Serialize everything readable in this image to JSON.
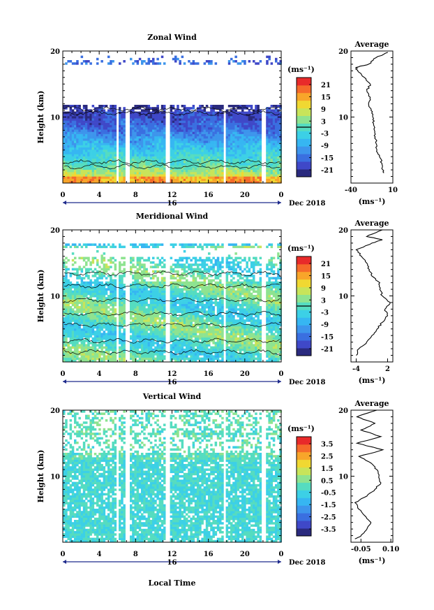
{
  "colors": {
    "colorbar": [
      "#2a2a7e",
      "#3f48c8",
      "#3a6fe0",
      "#3d95ec",
      "#36b6f2",
      "#3cd0e6",
      "#55dcc0",
      "#8ee390",
      "#c8e45a",
      "#f0d832",
      "#f8a52a",
      "#f56a2a",
      "#e82a2a"
    ],
    "axis": "#000000",
    "date_axis": "#1e2a8c"
  },
  "chart_data": [
    {
      "type": "heatmap",
      "title": "Zonal Wind",
      "ylabel": "Height (km)",
      "ylim": [
        0,
        20
      ],
      "y_ticks": [
        "20",
        "10"
      ],
      "x_ticks": [
        "0",
        "4",
        "8",
        "12",
        "16",
        "20",
        "0"
      ],
      "xlim": [
        0,
        24
      ],
      "date_axis": {
        "day": "16",
        "label": "Dec 2018"
      },
      "unit": "(ms⁻¹)",
      "colorbar_ticks": [
        "21",
        "15",
        "9",
        "3",
        "-3",
        "-9",
        "-15",
        "-21"
      ],
      "zero_contour": true,
      "data_gaps_hours": [
        5.8,
        7.0,
        11.3,
        17.6,
        21.8
      ],
      "data_ceiling_km": 19.5,
      "profile": {
        "title": "Average",
        "xlim": [
          -40,
          10
        ],
        "x_ticks": [
          "-40",
          "10"
        ],
        "xlabel": "(ms⁻¹)",
        "y_ticks": [
          "20",
          "10"
        ],
        "height_km": [
          1.5,
          2,
          3,
          4,
          5,
          6,
          7,
          8,
          9,
          10,
          11,
          12,
          13,
          14,
          15,
          16,
          17,
          17.5,
          18,
          19,
          19.8
        ],
        "value": [
          -1,
          -2,
          -3,
          -6,
          -9,
          -10,
          -11,
          -12,
          -13,
          -14,
          -16,
          -19,
          -17,
          -21,
          -17,
          -24,
          -32,
          -34,
          -19,
          -10,
          4
        ]
      }
    },
    {
      "type": "heatmap",
      "title": "Meridional Wind",
      "ylabel": "Height (km)",
      "ylim": [
        0,
        20
      ],
      "y_ticks": [
        "20",
        "10"
      ],
      "x_ticks": [
        "0",
        "4",
        "8",
        "12",
        "16",
        "20",
        "0"
      ],
      "xlim": [
        0,
        24
      ],
      "date_axis": {
        "day": "16",
        "label": "Dec 2018"
      },
      "unit": "(ms⁻¹)",
      "colorbar_ticks": [
        "21",
        "15",
        "9",
        "3",
        "-3",
        "-9",
        "-15",
        "-21"
      ],
      "zero_contour": true,
      "data_gaps_hours": [
        5.8,
        7.0,
        11.3,
        17.6,
        21.8
      ],
      "data_ceiling_km": 18.0,
      "profile": {
        "title": "Average",
        "xlim": [
          -5,
          3
        ],
        "x_ticks": [
          "-4",
          "2"
        ],
        "xlabel": "(ms⁻¹)",
        "y_ticks": [
          "20",
          "10"
        ],
        "height_km": [
          1,
          2,
          3,
          4,
          5,
          6,
          7,
          8,
          9,
          10,
          11,
          12,
          13,
          14,
          15,
          16,
          17,
          18,
          18.5,
          19,
          20
        ],
        "value": [
          -4,
          -3.5,
          -2,
          -1,
          0,
          1,
          2,
          1.5,
          2.5,
          1,
          0.5,
          0.5,
          -1,
          -1.5,
          -2,
          -3,
          -4,
          -1,
          1,
          -2,
          1
        ]
      }
    },
    {
      "type": "heatmap",
      "title": "Vertical Wind",
      "ylabel": "Height (km)",
      "ylim": [
        0,
        20
      ],
      "y_ticks": [
        "20",
        "10"
      ],
      "x_ticks": [
        "0",
        "4",
        "8",
        "12",
        "16",
        "20",
        "0"
      ],
      "xlim": [
        0,
        24
      ],
      "xlabel": "Local Time",
      "date_axis": {
        "day": "16",
        "label": "Dec 2018"
      },
      "unit": "(ms⁻¹)",
      "colorbar_ticks": [
        "3.5",
        "2.5",
        "1.5",
        "0.5",
        "-0.5",
        "-1.5",
        "-2.5",
        "-3.5"
      ],
      "zero_contour": false,
      "data_gaps_hours": [
        5.8,
        7.0,
        11.3,
        17.6,
        21.8
      ],
      "data_ceiling_km": 20,
      "profile": {
        "title": "Average",
        "xlim": [
          -0.1,
          0.11
        ],
        "x_ticks": [
          "-0.05",
          "0.10"
        ],
        "xlabel": "(ms⁻¹)",
        "y_ticks": [
          "20",
          "10"
        ],
        "height_km": [
          0.5,
          1,
          2,
          3,
          4,
          5,
          6,
          7,
          8,
          9,
          10,
          11,
          12,
          13,
          14,
          15,
          16,
          17,
          18,
          19,
          20
        ],
        "value": [
          -0.08,
          -0.05,
          -0.02,
          0.0,
          -0.03,
          -0.06,
          -0.08,
          -0.02,
          0.02,
          0.05,
          0.04,
          0.03,
          0.0,
          -0.06,
          0.06,
          -0.07,
          0.05,
          -0.05,
          0.02,
          -0.07,
          0.03
        ]
      }
    }
  ]
}
